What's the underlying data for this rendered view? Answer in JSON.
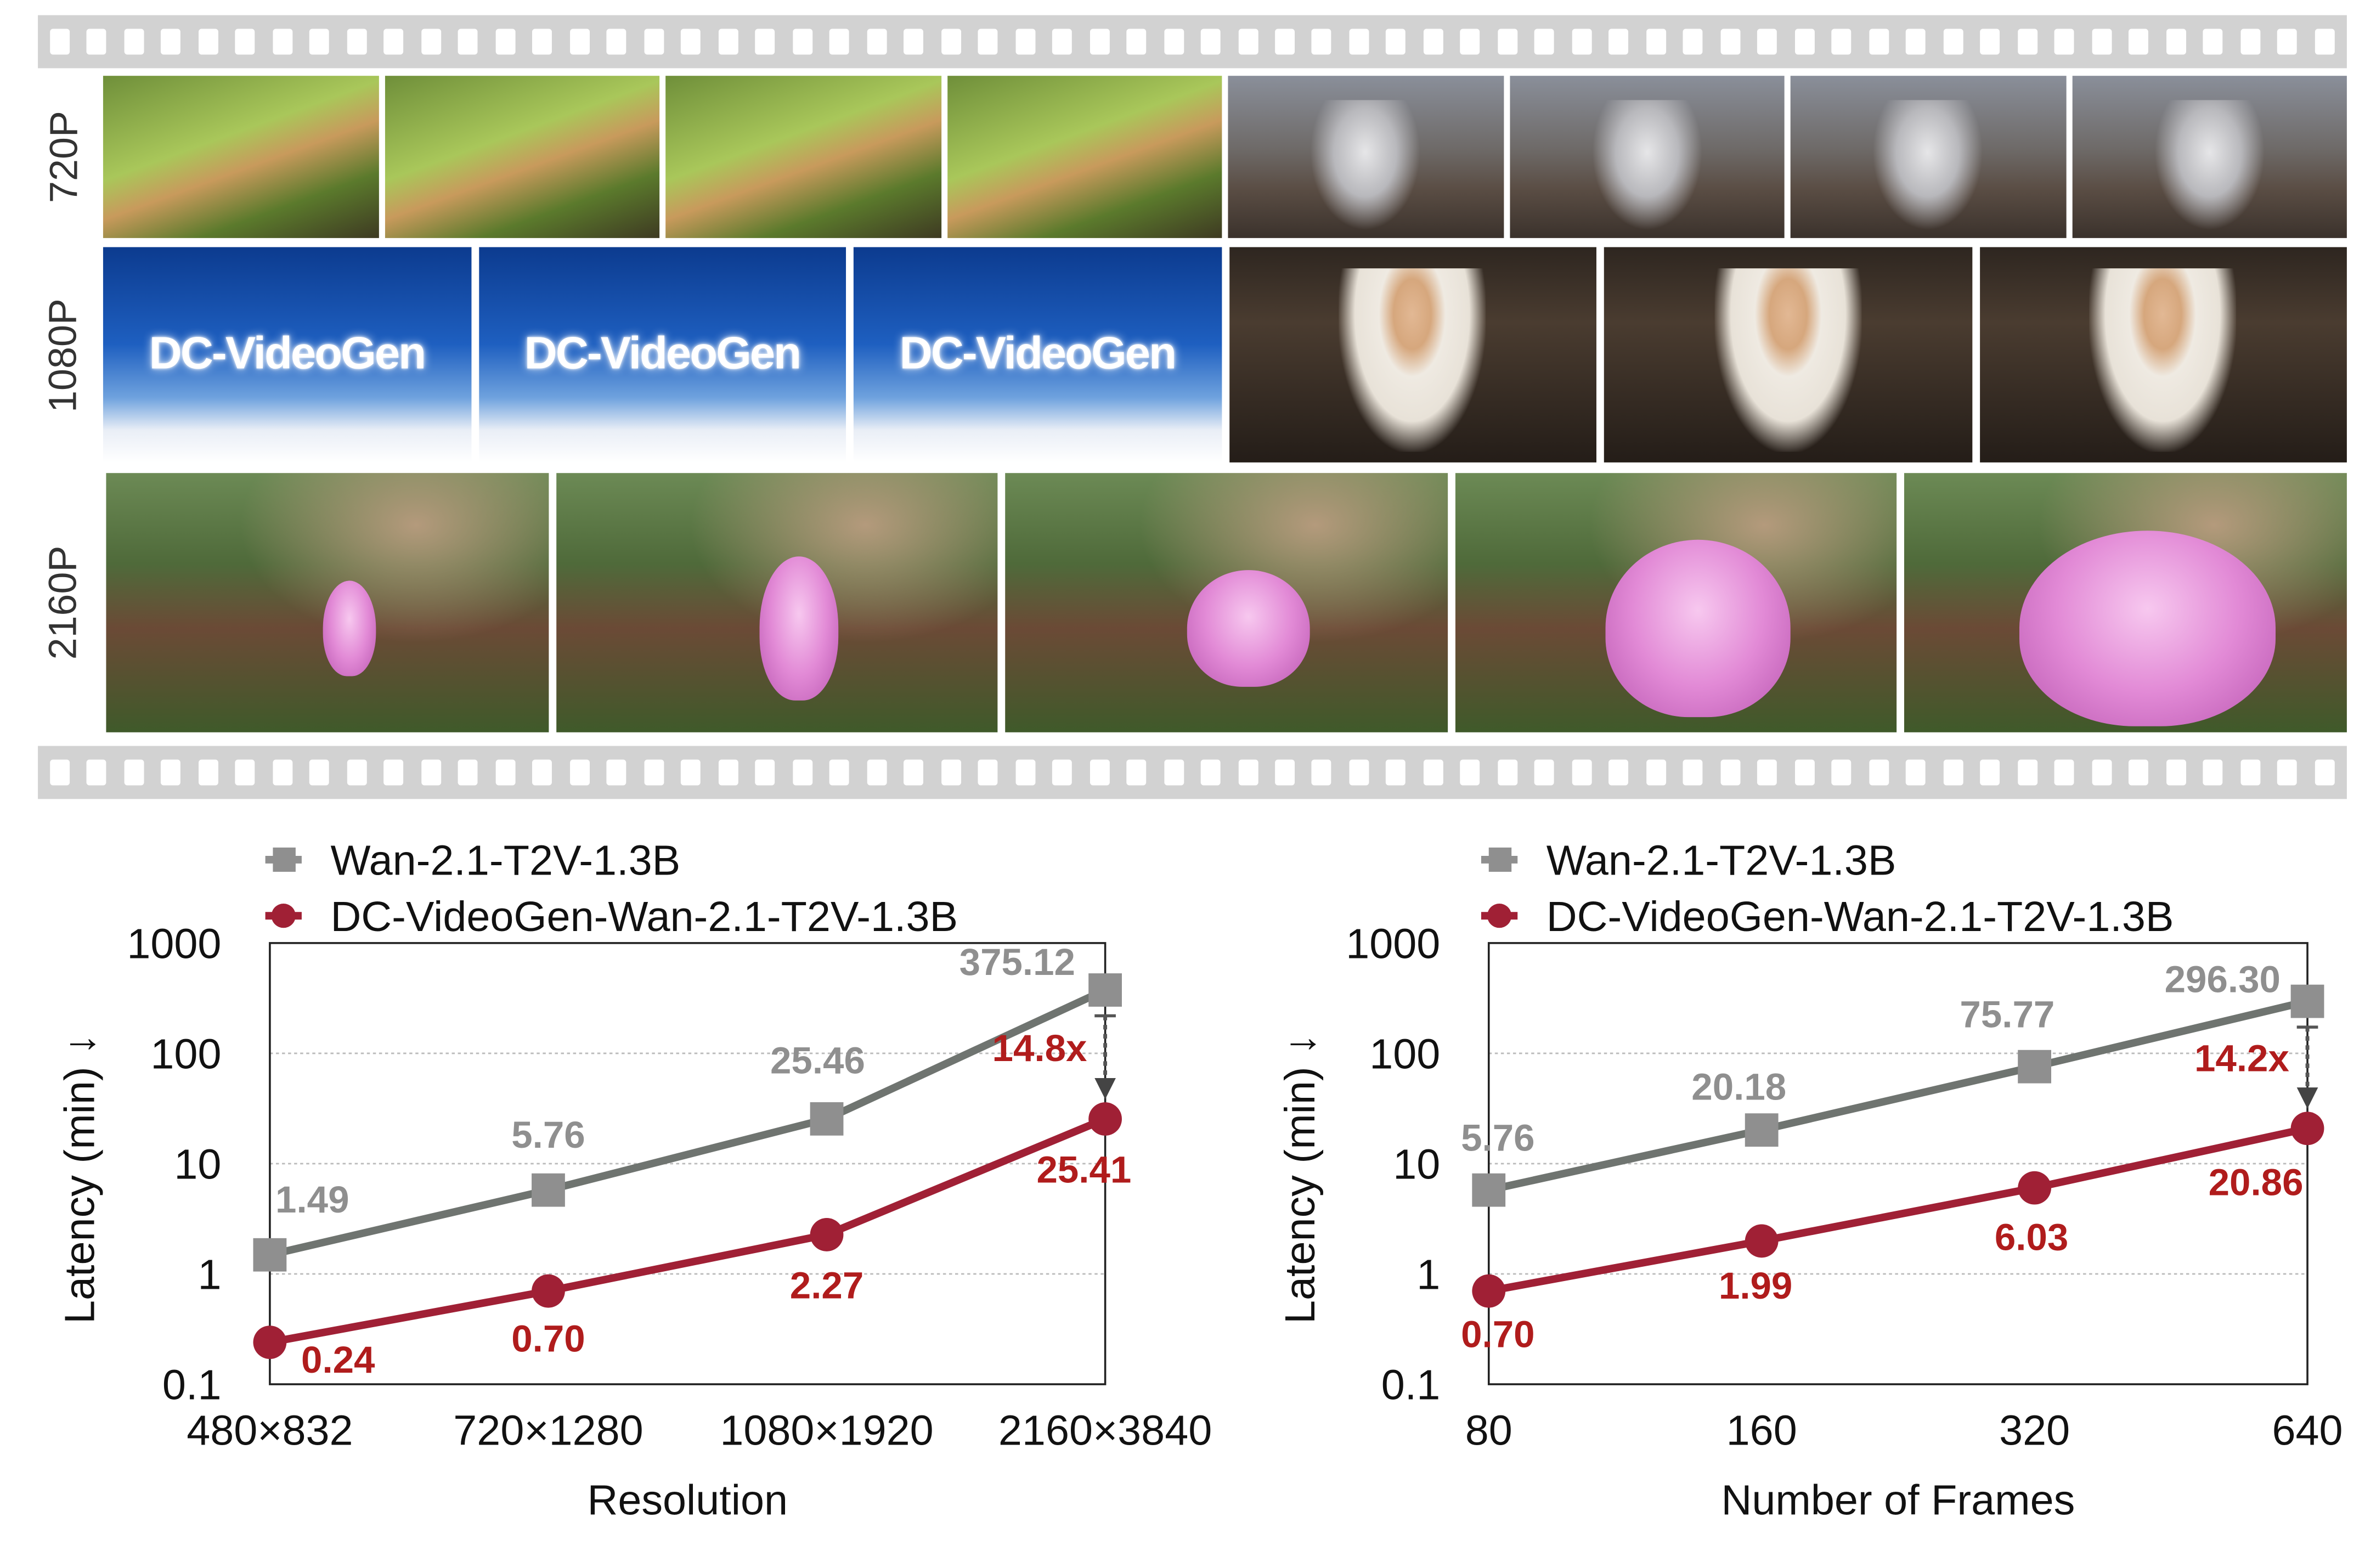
{
  "figure": {
    "row_labels": [
      "720P",
      "1080P",
      "2160P"
    ],
    "frame_text": "DC-VideoGen",
    "rows": [
      {
        "label": "720P",
        "frames": [
          "corgi",
          "corgi",
          "corgi",
          "corgi",
          "astronaut",
          "astronaut",
          "astronaut",
          "astronaut"
        ]
      },
      {
        "label": "1080P",
        "frames": [
          "sky",
          "sky",
          "sky",
          "woman",
          "woman",
          "woman"
        ]
      },
      {
        "label": "2160P",
        "frames": [
          "flower",
          "flower",
          "flower",
          "flower",
          "flower"
        ]
      }
    ]
  },
  "colors": {
    "baseline": "#8f8f8f",
    "baseline_line": "#6f7470",
    "ours": "#a02035",
    "ours_label": "#b01c1c",
    "film": "#d2d2d2"
  },
  "chart_data": [
    {
      "type": "line",
      "xlabel": "Resolution",
      "ylabel": "Latency (min) ↓",
      "y_scale": "log",
      "ylim": [
        0.1,
        1000
      ],
      "yticks": [
        "0.1",
        "1",
        "10",
        "100",
        "1000"
      ],
      "categories": [
        "480×832",
        "720×1280",
        "1080×1920",
        "2160×3840"
      ],
      "grid": "horizontal dotted",
      "legend": "top-left",
      "series": [
        {
          "name": "Wan-2.1-T2V-1.3B",
          "marker": "square",
          "values": [
            1.49,
            5.76,
            25.46,
            375.12
          ],
          "labels": [
            "1.49",
            "5.76",
            "25.46",
            "375.12"
          ]
        },
        {
          "name": "DC-VideoGen-Wan-2.1-T2V-1.3B",
          "marker": "circle",
          "values": [
            0.24,
            0.7,
            2.27,
            25.41
          ],
          "labels": [
            "0.24",
            "0.70",
            "2.27",
            "25.41"
          ]
        }
      ],
      "annotation": "14.8x"
    },
    {
      "type": "line",
      "xlabel": "Number of Frames",
      "ylabel": "Latency (min) ↓",
      "y_scale": "log",
      "ylim": [
        0.1,
        1000
      ],
      "yticks": [
        "0.1",
        "1",
        "10",
        "100",
        "1000"
      ],
      "categories": [
        "80",
        "160",
        "320",
        "640"
      ],
      "grid": "horizontal dotted",
      "legend": "top-left",
      "series": [
        {
          "name": "Wan-2.1-T2V-1.3B",
          "marker": "square",
          "values": [
            5.76,
            20.18,
            75.77,
            296.3
          ],
          "labels": [
            "5.76",
            "20.18",
            "75.77",
            "296.30"
          ]
        },
        {
          "name": "DC-VideoGen-Wan-2.1-T2V-1.3B",
          "marker": "circle",
          "values": [
            0.7,
            1.99,
            6.03,
            20.86
          ],
          "labels": [
            "0.70",
            "1.99",
            "6.03",
            "20.86"
          ]
        }
      ],
      "annotation": "14.2x"
    }
  ]
}
